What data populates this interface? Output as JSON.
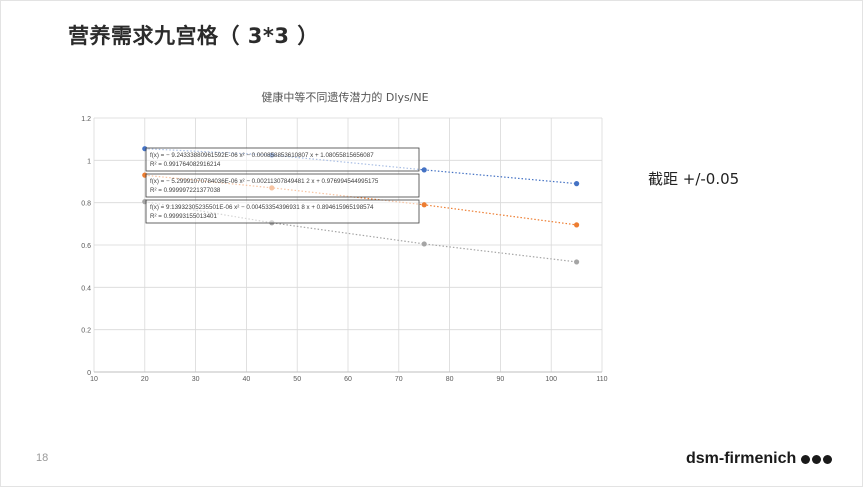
{
  "slide": {
    "title": "营养需求九宫格（ 3*3 ）",
    "side_note": "截距 +/-0.05",
    "page_number": "18",
    "brand": "dsm-firmenich"
  },
  "chart_data": {
    "type": "scatter",
    "title": "健康中等不同遗传潜力的 Dlys/NE",
    "xlim": [
      10,
      110
    ],
    "ylim": [
      0,
      1.2
    ],
    "x_ticks": [
      10,
      20,
      30,
      40,
      50,
      60,
      70,
      80,
      90,
      100,
      110
    ],
    "y_ticks": [
      0,
      0.2,
      0.4,
      0.6,
      0.8,
      1,
      1.2
    ],
    "x_tick_labels": [
      "10",
      "20",
      "30",
      "40",
      "50",
      "60",
      "70",
      "80",
      "90",
      "100",
      "110"
    ],
    "y_tick_labels": [
      "0",
      "0.2",
      "0.4",
      "0.6",
      "0.8",
      "1",
      "1.2"
    ],
    "grid": true,
    "trendlines": "dotted polynomial",
    "series": [
      {
        "color": "#4472c4",
        "x": [
          20,
          45,
          75,
          105
        ],
        "y": [
          1.055,
          1.025,
          0.955,
          0.89
        ],
        "equation": "f(x) = − 9.24333880961592E-06 x² − 0.000858853610807 x + 1.08055815656087",
        "r2": "R² = 0.991764082916214"
      },
      {
        "color": "#ed7d31",
        "x": [
          20,
          45,
          75,
          105
        ],
        "y": [
          0.93,
          0.87,
          0.79,
          0.695
        ],
        "equation": "f(x) = − 5.29991070784036E-06 x² − 0.00211307849481 2 x + 0.976994544995175",
        "r2": "R² = 0.999997221377038"
      },
      {
        "color": "#a5a5a5",
        "x": [
          20,
          45,
          75,
          105
        ],
        "y": [
          0.805,
          0.705,
          0.605,
          0.52
        ],
        "equation": "f(x) = 9.13932305235501E-06 x² − 0.00453354396931 8 x + 0.894615965198574",
        "r2": "R² = 0.99993155013401"
      }
    ]
  }
}
